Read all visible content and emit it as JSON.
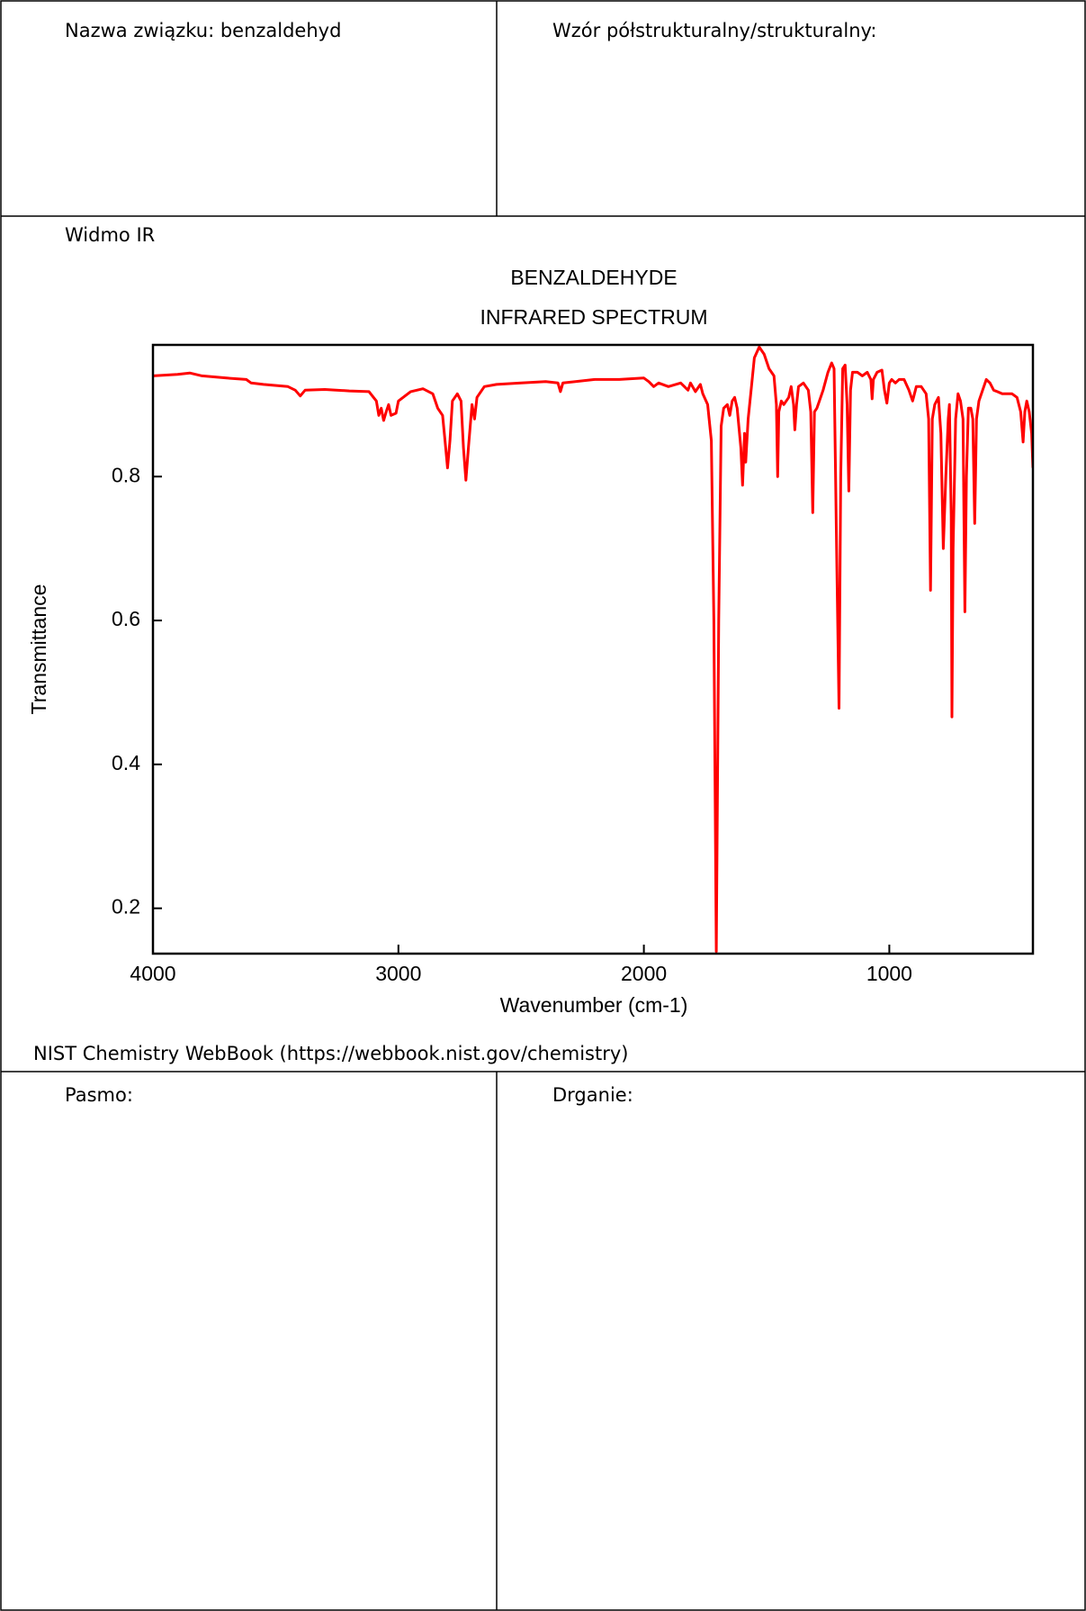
{
  "top_row": {
    "name": "Nazwa związku: benzaldehyd",
    "formula": "Wzór półstrukturalny/strukturalny:"
  },
  "section_label": "Widmo IR",
  "chart_data": {
    "type": "line",
    "title": "BENZALDEHYDE",
    "subtitle": "INFRARED SPECTRUM",
    "xlabel": "Wavenumber (cm-1)",
    "ylabel": "Transmittance",
    "color": "#ff0000",
    "xlim": [
      4000,
      415
    ],
    "ylim": [
      0.137,
      0.983
    ],
    "xticks": [
      4000,
      3000,
      2000,
      1000
    ],
    "yticks": [
      0.2,
      0.4,
      0.6,
      0.8
    ],
    "x": [
      4000,
      3900,
      3850,
      3800,
      3700,
      3620,
      3600,
      3550,
      3450,
      3420,
      3400,
      3380,
      3300,
      3200,
      3120,
      3090,
      3080,
      3070,
      3060,
      3050,
      3040,
      3030,
      3010,
      3000,
      2950,
      2900,
      2860,
      2840,
      2820,
      2810,
      2800,
      2790,
      2780,
      2760,
      2745,
      2735,
      2725,
      2715,
      2700,
      2690,
      2680,
      2650,
      2600,
      2500,
      2400,
      2350,
      2340,
      2330,
      2200,
      2100,
      2000,
      1980,
      1960,
      1940,
      1900,
      1850,
      1820,
      1810,
      1790,
      1770,
      1760,
      1740,
      1725,
      1715,
      1705,
      1695,
      1685,
      1675,
      1660,
      1650,
      1640,
      1630,
      1620,
      1605,
      1598,
      1590,
      1585,
      1575,
      1560,
      1550,
      1530,
      1510,
      1490,
      1470,
      1460,
      1455,
      1450,
      1440,
      1430,
      1410,
      1400,
      1390,
      1385,
      1378,
      1370,
      1350,
      1330,
      1320,
      1312,
      1305,
      1295,
      1285,
      1270,
      1250,
      1235,
      1225,
      1215,
      1205,
      1198,
      1190,
      1180,
      1172,
      1165,
      1158,
      1150,
      1130,
      1110,
      1090,
      1075,
      1070,
      1065,
      1050,
      1030,
      1020,
      1010,
      1000,
      990,
      975,
      960,
      940,
      920,
      905,
      890,
      870,
      850,
      840,
      832,
      825,
      815,
      800,
      790,
      780,
      770,
      760,
      755,
      748,
      745,
      740,
      730,
      720,
      710,
      700,
      692,
      686,
      678,
      668,
      660,
      652,
      645,
      635,
      620,
      605,
      590,
      575,
      560,
      540,
      520,
      500,
      480,
      465,
      455,
      448,
      440,
      430,
      420,
      415
    ],
    "values": [
      0.94,
      0.942,
      0.944,
      0.94,
      0.937,
      0.935,
      0.93,
      0.928,
      0.925,
      0.92,
      0.912,
      0.92,
      0.921,
      0.919,
      0.918,
      0.905,
      0.885,
      0.895,
      0.878,
      0.89,
      0.9,
      0.885,
      0.888,
      0.905,
      0.918,
      0.922,
      0.915,
      0.895,
      0.885,
      0.85,
      0.812,
      0.85,
      0.905,
      0.915,
      0.905,
      0.84,
      0.795,
      0.84,
      0.9,
      0.88,
      0.91,
      0.925,
      0.928,
      0.93,
      0.932,
      0.93,
      0.918,
      0.93,
      0.935,
      0.935,
      0.937,
      0.932,
      0.925,
      0.93,
      0.925,
      0.93,
      0.92,
      0.93,
      0.918,
      0.928,
      0.915,
      0.9,
      0.85,
      0.6,
      0.14,
      0.6,
      0.87,
      0.895,
      0.9,
      0.885,
      0.905,
      0.91,
      0.895,
      0.84,
      0.788,
      0.86,
      0.82,
      0.88,
      0.93,
      0.965,
      0.98,
      0.97,
      0.95,
      0.94,
      0.9,
      0.8,
      0.89,
      0.905,
      0.9,
      0.91,
      0.925,
      0.9,
      0.865,
      0.9,
      0.925,
      0.93,
      0.92,
      0.89,
      0.75,
      0.89,
      0.895,
      0.905,
      0.92,
      0.945,
      0.958,
      0.95,
      0.7,
      0.478,
      0.8,
      0.95,
      0.955,
      0.9,
      0.78,
      0.92,
      0.945,
      0.945,
      0.94,
      0.945,
      0.935,
      0.908,
      0.935,
      0.945,
      0.948,
      0.92,
      0.902,
      0.93,
      0.935,
      0.93,
      0.935,
      0.935,
      0.92,
      0.905,
      0.925,
      0.925,
      0.915,
      0.88,
      0.642,
      0.88,
      0.9,
      0.91,
      0.86,
      0.7,
      0.8,
      0.88,
      0.9,
      0.745,
      0.466,
      0.7,
      0.88,
      0.915,
      0.905,
      0.88,
      0.612,
      0.8,
      0.895,
      0.895,
      0.88,
      0.735,
      0.88,
      0.905,
      0.92,
      0.935,
      0.93,
      0.92,
      0.918,
      0.915,
      0.915,
      0.915,
      0.91,
      0.89,
      0.848,
      0.89,
      0.905,
      0.89,
      0.86,
      0.812
    ]
  },
  "source": "NIST Chemistry WebBook (https://webbook.nist.gov/chemistry)",
  "bottom_row": {
    "band": "Pasmo:",
    "vibration": "Drganie:"
  }
}
